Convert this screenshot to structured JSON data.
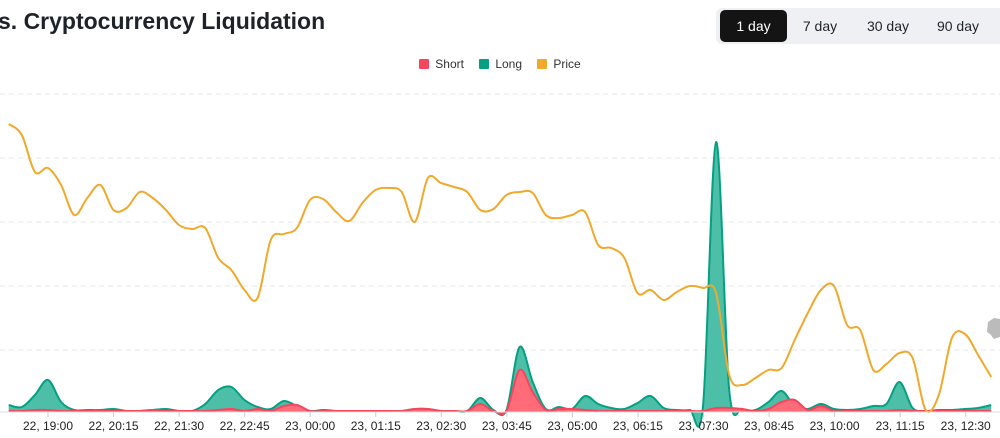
{
  "title": "s. Cryptocurrency Liquidation",
  "tabs": [
    {
      "label": "1 day",
      "active": true
    },
    {
      "label": "7 day"
    },
    {
      "label": "30 day"
    },
    {
      "label": "90 day"
    }
  ],
  "colors": {
    "short": "#f6465d",
    "long": "#0ecb81",
    "long_fill": "#4dbfa8",
    "long_line": "#05a082",
    "price": "#f0a92b"
  },
  "legend": [
    {
      "label": "Short",
      "color": "#f6465d"
    },
    {
      "label": "Long",
      "color": "#05a082"
    },
    {
      "label": "Price",
      "color": "#f0a92b"
    }
  ],
  "chart_data": {
    "type": "area",
    "x_start": "22, 18:15",
    "interval_minutes": 15,
    "xticks": [
      "22, 19:00",
      "22, 20:15",
      "22, 21:30",
      "22, 22:45",
      "23, 00:00",
      "23, 01:15",
      "23, 02:30",
      "23, 03:45",
      "23, 05:00",
      "23, 06:15",
      "23, 07:30",
      "23, 08:45",
      "23, 10:00",
      "23, 11:15",
      "23, 12:30"
    ],
    "grid": true,
    "ylim": [
      0,
      318
    ],
    "series": [
      {
        "name": "Long",
        "values": [
          7,
          5,
          17,
          32,
          10,
          2,
          2,
          2,
          3,
          1,
          1,
          2,
          3,
          1,
          1,
          8,
          22,
          25,
          12,
          5,
          3,
          11,
          6,
          1,
          2,
          1,
          1,
          1,
          1,
          1,
          1,
          3,
          3,
          1,
          1,
          1,
          14,
          2,
          2,
          65,
          30,
          3,
          5,
          3,
          16,
          8,
          4,
          3,
          9,
          16,
          4,
          2,
          2,
          6,
          270,
          22,
          3,
          2,
          10,
          21,
          6,
          3,
          8,
          3,
          2,
          3,
          6,
          8,
          30,
          4,
          1,
          2,
          2,
          3,
          4,
          7
        ]
      },
      {
        "name": "Short",
        "values": [
          1,
          1,
          2,
          2,
          1,
          1,
          1,
          1,
          1,
          1,
          1,
          2,
          1,
          1,
          1,
          1,
          2,
          3,
          1,
          3,
          1,
          6,
          7,
          1,
          1,
          1,
          1,
          1,
          1,
          1,
          1,
          3,
          3,
          1,
          1,
          1,
          8,
          1,
          1,
          42,
          20,
          2,
          3,
          3,
          2,
          1,
          1,
          1,
          1,
          1,
          1,
          1,
          1,
          1,
          4,
          4,
          3,
          1,
          3,
          10,
          12,
          2,
          6,
          1,
          1,
          1,
          1,
          1,
          2,
          1,
          1,
          1,
          1,
          1,
          1,
          1
        ]
      },
      {
        "name": "Price",
        "values": [
          288,
          277,
          240,
          244,
          227,
          197,
          214,
          227,
          202,
          204,
          220,
          214,
          202,
          187,
          183,
          184,
          154,
          142,
          122,
          114,
          172,
          178,
          184,
          212,
          213,
          200,
          191,
          209,
          222,
          224,
          220,
          190,
          234,
          229,
          225,
          220,
          202,
          203,
          217,
          220,
          219,
          197,
          194,
          197,
          200,
          167,
          164,
          154,
          119,
          122,
          112,
          120,
          126,
          124,
          119,
          37,
          27,
          34,
          42,
          44,
          72,
          99,
          122,
          126,
          87,
          82,
          42,
          48,
          59,
          54,
          2,
          17,
          74,
          78,
          57,
          35
        ]
      }
    ]
  }
}
